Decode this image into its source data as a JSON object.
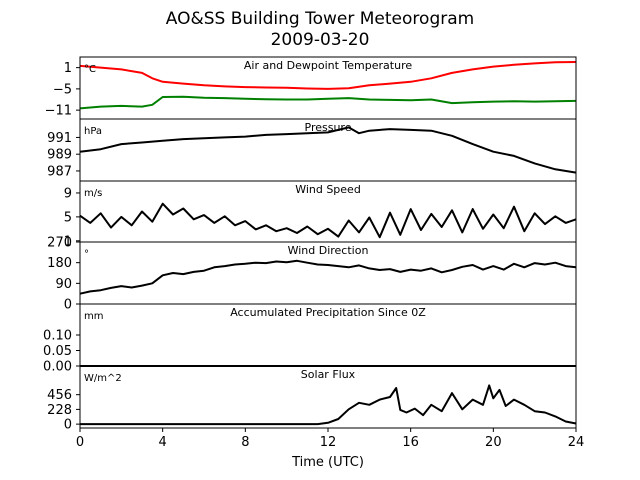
{
  "chart_title_line1": "AO&SS Building Tower Meteorogram",
  "chart_title_line2": "2009-03-20",
  "chart_data": [
    {
      "type": "line",
      "title": "Air and Dewpoint Temperature",
      "unit": "°C",
      "x_range": [
        0,
        24
      ],
      "ylim": [
        -13.5,
        4
      ],
      "yticks": [
        1,
        -5,
        -11
      ],
      "ytick_labels": [
        "1",
        "−5",
        "−11"
      ],
      "series": [
        {
          "color": "#ff0000",
          "x": [
            0,
            1,
            2,
            3,
            3.5,
            4,
            5,
            6,
            7,
            8,
            9,
            10,
            11,
            12,
            13,
            14,
            15,
            16,
            17,
            18,
            19,
            20,
            21,
            22,
            23,
            24
          ],
          "values": [
            1.5,
            1.0,
            0.5,
            -0.5,
            -2.0,
            -3.0,
            -3.5,
            -4.0,
            -4.3,
            -4.5,
            -4.6,
            -4.7,
            -4.9,
            -5.0,
            -4.8,
            -4.0,
            -3.5,
            -3.0,
            -2.0,
            -0.5,
            0.5,
            1.3,
            1.8,
            2.2,
            2.5,
            2.6
          ]
        },
        {
          "color": "#008000",
          "x": [
            0,
            1,
            2,
            3,
            3.5,
            4,
            5,
            6,
            7,
            8,
            9,
            10,
            11,
            12,
            13,
            14,
            15,
            16,
            17,
            18,
            19,
            20,
            21,
            22,
            23,
            24
          ],
          "values": [
            -10.5,
            -10.0,
            -9.8,
            -10.0,
            -9.5,
            -7.3,
            -7.2,
            -7.5,
            -7.6,
            -7.8,
            -7.9,
            -8.0,
            -8.0,
            -7.8,
            -7.6,
            -8.0,
            -8.1,
            -8.2,
            -8.0,
            -9.0,
            -8.8,
            -8.6,
            -8.5,
            -8.6,
            -8.5,
            -8.4
          ]
        }
      ]
    },
    {
      "type": "line",
      "title": "Pressure",
      "unit": "hPa",
      "x_range": [
        0,
        24
      ],
      "ylim": [
        985.8,
        993.2
      ],
      "yticks": [
        991,
        989,
        987
      ],
      "ytick_labels": [
        "991",
        "989",
        "987"
      ],
      "series": [
        {
          "color": "#000000",
          "x": [
            0,
            1,
            2,
            3,
            4,
            5,
            6,
            7,
            8,
            9,
            10,
            11,
            12,
            12.5,
            13,
            13.5,
            14,
            15,
            16,
            17,
            18,
            19,
            20,
            21,
            22,
            23,
            24
          ],
          "values": [
            989.3,
            989.6,
            990.2,
            990.4,
            990.6,
            990.8,
            990.9,
            991.0,
            991.1,
            991.3,
            991.4,
            991.5,
            991.6,
            991.9,
            992.2,
            991.5,
            991.8,
            992.0,
            991.9,
            991.8,
            991.2,
            990.2,
            989.3,
            988.8,
            987.9,
            987.2,
            986.8
          ]
        }
      ]
    },
    {
      "type": "line",
      "title": "Wind Speed",
      "unit": "m/s",
      "x_range": [
        0,
        24
      ],
      "ylim": [
        0.8,
        11
      ],
      "yticks": [
        9,
        5,
        1
      ],
      "ytick_labels": [
        "9",
        "5",
        "1"
      ],
      "series": [
        {
          "color": "#000000",
          "x": [
            0,
            0.5,
            1,
            1.5,
            2,
            2.5,
            3,
            3.5,
            4,
            4.5,
            5,
            5.5,
            6,
            6.5,
            7,
            7.5,
            8,
            8.5,
            9,
            9.5,
            10,
            10.5,
            11,
            11.5,
            12,
            12.5,
            13,
            13.5,
            14,
            14.5,
            15,
            15.5,
            16,
            16.5,
            17,
            17.5,
            18,
            18.5,
            19,
            19.5,
            20,
            20.5,
            21,
            21.5,
            22,
            22.5,
            23,
            23.5,
            24
          ],
          "values": [
            5.2,
            4.0,
            5.6,
            3.2,
            5.0,
            3.6,
            5.9,
            4.2,
            7.2,
            5.4,
            6.4,
            4.6,
            5.3,
            4.0,
            5.1,
            3.6,
            4.3,
            2.9,
            3.6,
            2.6,
            3.1,
            2.3,
            3.4,
            2.1,
            3.0,
            1.7,
            4.4,
            2.4,
            4.9,
            1.6,
            5.7,
            2.0,
            6.3,
            2.8,
            5.5,
            3.3,
            6.1,
            2.4,
            6.3,
            3.0,
            5.4,
            3.1,
            6.7,
            2.6,
            5.6,
            3.8,
            5.1,
            4.0,
            4.6
          ]
        }
      ]
    },
    {
      "type": "line",
      "title": "Wind Direction",
      "unit": "°",
      "x_range": [
        0,
        24
      ],
      "ylim": [
        0,
        270
      ],
      "yticks": [
        270,
        180,
        90,
        0
      ],
      "ytick_labels": [
        "270",
        "180",
        "90",
        "0"
      ],
      "series": [
        {
          "color": "#000000",
          "x": [
            0,
            0.5,
            1,
            1.5,
            2,
            2.5,
            3,
            3.5,
            4,
            4.5,
            5,
            5.5,
            6,
            6.5,
            7,
            7.5,
            8,
            8.5,
            9,
            9.5,
            10,
            10.5,
            11,
            11.5,
            12,
            12.5,
            13,
            13.5,
            14,
            14.5,
            15,
            15.5,
            16,
            16.5,
            17,
            17.5,
            18,
            18.5,
            19,
            19.5,
            20,
            20.5,
            21,
            21.5,
            22,
            22.5,
            23,
            23.5,
            24
          ],
          "values": [
            45,
            55,
            60,
            70,
            78,
            72,
            80,
            90,
            125,
            135,
            130,
            140,
            145,
            160,
            165,
            172,
            175,
            180,
            178,
            185,
            182,
            188,
            180,
            172,
            170,
            165,
            160,
            168,
            155,
            148,
            152,
            140,
            150,
            145,
            155,
            138,
            148,
            162,
            170,
            150,
            165,
            150,
            175,
            160,
            178,
            172,
            180,
            165,
            160
          ]
        }
      ]
    },
    {
      "type": "line",
      "title": "Accumulated Precipitation Since 0Z",
      "unit": "mm",
      "x_range": [
        0,
        24
      ],
      "ylim": [
        0,
        0.2
      ],
      "yticks": [
        0.1,
        0.05,
        0.0
      ],
      "ytick_labels": [
        "0.10",
        "0.05",
        "0.00"
      ],
      "series": [
        {
          "color": "#000000",
          "x": [
            0,
            24
          ],
          "values": [
            0,
            0
          ]
        }
      ]
    },
    {
      "type": "line",
      "title": "Solar Flux",
      "unit": "W/m^2",
      "x_range": [
        0,
        24
      ],
      "ylim": [
        -60,
        900
      ],
      "yticks": [
        456,
        228,
        0
      ],
      "ytick_labels": [
        "456",
        "228",
        "0"
      ],
      "series": [
        {
          "color": "#000000",
          "x": [
            0,
            6,
            11.5,
            12,
            12.5,
            13,
            13.5,
            14,
            14.5,
            15,
            15.3,
            15.5,
            15.8,
            16.2,
            16.6,
            17,
            17.5,
            18,
            18.5,
            19,
            19.5,
            19.8,
            20,
            20.3,
            20.6,
            21,
            21.5,
            22,
            22.5,
            23,
            23.5,
            24
          ],
          "values": [
            0,
            0,
            0,
            20,
            80,
            230,
            330,
            300,
            380,
            420,
            560,
            220,
            180,
            240,
            140,
            300,
            200,
            480,
            230,
            380,
            300,
            600,
            400,
            530,
            280,
            380,
            300,
            200,
            180,
            120,
            40,
            10
          ]
        }
      ]
    }
  ],
  "x_ticks": [
    0,
    4,
    8,
    12,
    16,
    20,
    24
  ],
  "x_tick_labels": [
    "0",
    "4",
    "8",
    "12",
    "16",
    "20",
    "24"
  ],
  "xlabel": "Time (UTC)"
}
